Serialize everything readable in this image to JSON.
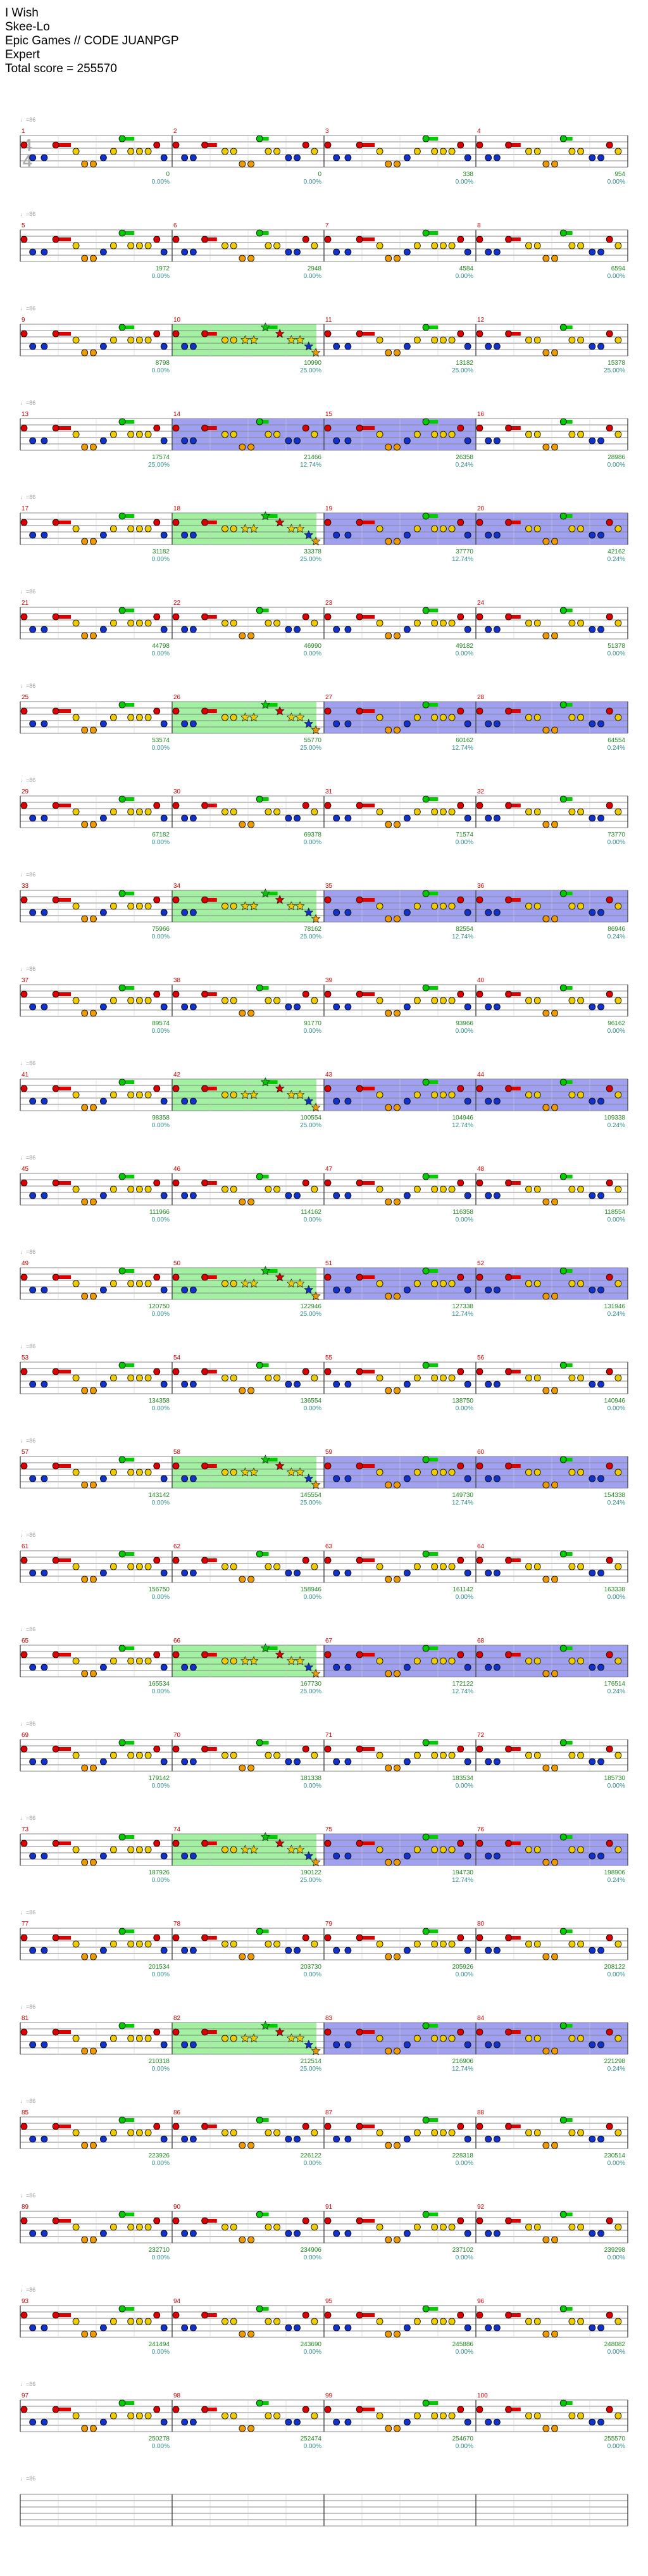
{
  "song": {
    "title": "I Wish",
    "artist": "Skee-Lo",
    "charter": "Epic Games // CODE JUANPGP",
    "difficulty": "Expert",
    "total_score_label": "Total score = 255570"
  },
  "time_signature": [
    "4",
    "4"
  ],
  "tempo_marker_glyph": "♩=86",
  "colors": {
    "staff_line": "#888888",
    "measure_line": "#555555",
    "measure_number": "#cc0000",
    "score_text": "#228b22",
    "multiplier_text": "#2e8b8b",
    "gray_text": "#999999",
    "star_power": "#90ee90",
    "overdrive": "#8080ee",
    "lanes": [
      "#00cc00",
      "#dd0000",
      "#eecc00",
      "#1133cc",
      "#ee9900"
    ]
  },
  "measures": [
    {
      "n": "1",
      "score": "0",
      "mult": "0.00%",
      "gray": "",
      "sp": false,
      "od": false
    },
    {
      "n": "2",
      "score": "0",
      "mult": "0.00%",
      "gray": "",
      "sp": false,
      "od": false
    },
    {
      "n": "3",
      "score": "0",
      "mult": "0.00%",
      "gray": "",
      "sp": false,
      "od": false
    },
    {
      "n": "4",
      "score": "338",
      "mult": "0.00%",
      "gray": "",
      "sp": false,
      "od": false
    },
    {
      "n": "5",
      "score": "954",
      "mult": "0.00%",
      "gray": "",
      "sp": false,
      "od": false
    },
    {
      "n": "6",
      "score": "1972",
      "mult": "0.00%",
      "gray": "",
      "sp": false,
      "od": false
    },
    {
      "n": "7",
      "score": "2948",
      "mult": "0.00%",
      "gray": "",
      "sp": false,
      "od": false
    },
    {
      "n": "8",
      "score": "4584",
      "mult": "0.00%",
      "gray": "",
      "sp": false,
      "od": false
    },
    {
      "n": "9",
      "score": "6594",
      "mult": "0.00%",
      "gray": "",
      "sp": false,
      "od": false
    },
    {
      "n": "10",
      "score": "8798",
      "mult": "0.00%",
      "gray": "",
      "sp": true,
      "od": false
    },
    {
      "n": "11",
      "score": "10990",
      "mult": "25.00%",
      "gray": "",
      "sp": false,
      "od": false
    },
    {
      "n": "12",
      "score": "13182",
      "mult": "25.00%",
      "gray": "",
      "sp": false,
      "od": false
    },
    {
      "n": "13",
      "score": "15378",
      "mult": "25.00%",
      "gray": "",
      "sp": false,
      "od": false
    },
    {
      "n": "14",
      "score": "17574",
      "mult": "25.00%",
      "gray": "",
      "sp": false,
      "od": true
    },
    {
      "n": "15",
      "score": "21466",
      "mult": "12.74%",
      "gray": "",
      "sp": false,
      "od": true
    },
    {
      "n": "16",
      "score": "26358",
      "mult": "0.24%",
      "gray": "",
      "sp": false,
      "od": false
    },
    {
      "n": "17",
      "score": "28986",
      "mult": "0.00%",
      "gray": "",
      "sp": false,
      "od": false
    },
    {
      "n": "18",
      "score": "31182",
      "mult": "0.00%",
      "gray": "",
      "sp": true,
      "od": false
    },
    {
      "n": "19",
      "score": "33378",
      "mult": "25.00%",
      "gray": "",
      "sp": false,
      "od": true
    },
    {
      "n": "20",
      "score": "37770",
      "mult": "12.74%",
      "gray": "",
      "sp": false,
      "od": true
    },
    {
      "n": "21",
      "score": "42162",
      "mult": "0.24%",
      "gray": "",
      "sp": false,
      "od": false
    },
    {
      "n": "22",
      "score": "44798",
      "mult": "0.00%",
      "gray": "",
      "sp": false,
      "od": false
    },
    {
      "n": "23",
      "score": "46990",
      "mult": "0.00%",
      "gray": "",
      "sp": false,
      "od": false
    },
    {
      "n": "24",
      "score": "49182",
      "mult": "0.00%",
      "gray": "",
      "sp": false,
      "od": false
    },
    {
      "n": "25",
      "score": "51378",
      "mult": "0.00%",
      "gray": "",
      "sp": false,
      "od": false
    },
    {
      "n": "26",
      "score": "53574",
      "mult": "0.00%",
      "gray": "",
      "sp": true,
      "od": false
    },
    {
      "n": "27",
      "score": "55770",
      "mult": "25.00%",
      "gray": "",
      "sp": false,
      "od": true
    },
    {
      "n": "28",
      "score": "60162",
      "mult": "12.74%",
      "gray": "",
      "sp": false,
      "od": true
    },
    {
      "n": "29",
      "score": "64554",
      "mult": "0.24%",
      "gray": "",
      "sp": false,
      "od": false
    },
    {
      "n": "30",
      "score": "67182",
      "mult": "0.00%",
      "gray": "",
      "sp": false,
      "od": false
    },
    {
      "n": "31",
      "score": "69378",
      "mult": "0.00%",
      "gray": "",
      "sp": false,
      "od": false
    },
    {
      "n": "32",
      "score": "71574",
      "mult": "0.00%",
      "gray": "",
      "sp": false,
      "od": false
    },
    {
      "n": "33",
      "score": "73770",
      "mult": "0.00%",
      "gray": "",
      "sp": false,
      "od": false
    },
    {
      "n": "34",
      "score": "75966",
      "mult": "0.00%",
      "gray": "",
      "sp": true,
      "od": false
    },
    {
      "n": "35",
      "score": "78162",
      "mult": "25.00%",
      "gray": "",
      "sp": false,
      "od": true
    },
    {
      "n": "36",
      "score": "82554",
      "mult": "12.74%",
      "gray": "",
      "sp": false,
      "od": true
    },
    {
      "n": "37",
      "score": "86946",
      "mult": "0.24%",
      "gray": "",
      "sp": false,
      "od": false
    },
    {
      "n": "38",
      "score": "89574",
      "mult": "0.00%",
      "gray": "",
      "sp": false,
      "od": false
    },
    {
      "n": "39",
      "score": "91770",
      "mult": "0.00%",
      "gray": "",
      "sp": false,
      "od": false
    },
    {
      "n": "40",
      "score": "93966",
      "mult": "0.00%",
      "gray": "",
      "sp": false,
      "od": false
    },
    {
      "n": "41",
      "score": "96162",
      "mult": "0.00%",
      "gray": "",
      "sp": false,
      "od": false
    },
    {
      "n": "42",
      "score": "98358",
      "mult": "0.00%",
      "gray": "",
      "sp": true,
      "od": false
    },
    {
      "n": "43",
      "score": "100554",
      "mult": "25.00%",
      "gray": "",
      "sp": false,
      "od": true
    },
    {
      "n": "44",
      "score": "104946",
      "mult": "12.74%",
      "gray": "",
      "sp": false,
      "od": true
    },
    {
      "n": "45",
      "score": "109338",
      "mult": "0.24%",
      "gray": "",
      "sp": false,
      "od": false
    },
    {
      "n": "46",
      "score": "111966",
      "mult": "0.00%",
      "gray": "",
      "sp": false,
      "od": false
    },
    {
      "n": "47",
      "score": "114162",
      "mult": "0.00%",
      "gray": "",
      "sp": false,
      "od": false
    },
    {
      "n": "48",
      "score": "116358",
      "mult": "0.00%",
      "gray": "",
      "sp": false,
      "od": false
    },
    {
      "n": "49",
      "score": "118554",
      "mult": "0.00%",
      "gray": "",
      "sp": false,
      "od": false
    },
    {
      "n": "50",
      "score": "120750",
      "mult": "0.00%",
      "gray": "",
      "sp": true,
      "od": false
    },
    {
      "n": "51",
      "score": "122946",
      "mult": "25.00%",
      "gray": "",
      "sp": false,
      "od": true
    },
    {
      "n": "52",
      "score": "127338",
      "mult": "12.74%",
      "gray": "",
      "sp": false,
      "od": true
    },
    {
      "n": "53",
      "score": "131946",
      "mult": "0.24%",
      "gray": "",
      "sp": false,
      "od": false
    },
    {
      "n": "54",
      "score": "134358",
      "mult": "0.00%",
      "gray": "",
      "sp": false,
      "od": false
    },
    {
      "n": "55",
      "score": "136554",
      "mult": "0.00%",
      "gray": "",
      "sp": false,
      "od": false
    },
    {
      "n": "56",
      "score": "138750",
      "mult": "0.00%",
      "gray": "",
      "sp": false,
      "od": false
    },
    {
      "n": "57",
      "score": "140946",
      "mult": "0.00%",
      "gray": "",
      "sp": false,
      "od": false
    },
    {
      "n": "58",
      "score": "143142",
      "mult": "0.00%",
      "gray": "",
      "sp": true,
      "od": false
    },
    {
      "n": "59",
      "score": "145554",
      "mult": "25.00%",
      "gray": "",
      "sp": false,
      "od": true
    },
    {
      "n": "60",
      "score": "149730",
      "mult": "12.74%",
      "gray": "",
      "sp": false,
      "od": true
    },
    {
      "n": "61",
      "score": "154338",
      "mult": "0.24%",
      "gray": "",
      "sp": false,
      "od": false
    },
    {
      "n": "62",
      "score": "156750",
      "mult": "0.00%",
      "gray": "",
      "sp": false,
      "od": false
    },
    {
      "n": "63",
      "score": "158946",
      "mult": "0.00%",
      "gray": "",
      "sp": false,
      "od": false
    },
    {
      "n": "64",
      "score": "161142",
      "mult": "0.00%",
      "gray": "",
      "sp": false,
      "od": false
    },
    {
      "n": "65",
      "score": "163338",
      "mult": "0.00%",
      "gray": "",
      "sp": false,
      "od": false
    },
    {
      "n": "66",
      "score": "165534",
      "mult": "0.00%",
      "gray": "",
      "sp": true,
      "od": false
    },
    {
      "n": "67",
      "score": "167730",
      "mult": "25.00%",
      "gray": "",
      "sp": false,
      "od": true
    },
    {
      "n": "68",
      "score": "172122",
      "mult": "12.74%",
      "gray": "",
      "sp": false,
      "od": true
    },
    {
      "n": "69",
      "score": "176514",
      "mult": "0.24%",
      "gray": "",
      "sp": false,
      "od": false
    },
    {
      "n": "70",
      "score": "179142",
      "mult": "0.00%",
      "gray": "",
      "sp": false,
      "od": false
    },
    {
      "n": "71",
      "score": "181338",
      "mult": "0.00%",
      "gray": "",
      "sp": false,
      "od": false
    },
    {
      "n": "72",
      "score": "183534",
      "mult": "0.00%",
      "gray": "",
      "sp": false,
      "od": false
    },
    {
      "n": "73",
      "score": "185730",
      "mult": "0.00%",
      "gray": "",
      "sp": false,
      "od": false
    },
    {
      "n": "74",
      "score": "187926",
      "mult": "0.00%",
      "gray": "",
      "sp": true,
      "od": false
    },
    {
      "n": "75",
      "score": "190122",
      "mult": "25.00%",
      "gray": "",
      "sp": false,
      "od": true
    },
    {
      "n": "76",
      "score": "194730",
      "mult": "12.74%",
      "gray": "",
      "sp": false,
      "od": true
    },
    {
      "n": "77",
      "score": "198906",
      "mult": "0.24%",
      "gray": "",
      "sp": false,
      "od": false
    },
    {
      "n": "78",
      "score": "201534",
      "mult": "0.00%",
      "gray": "",
      "sp": false,
      "od": false
    },
    {
      "n": "79",
      "score": "203730",
      "mult": "0.00%",
      "gray": "",
      "sp": false,
      "od": false
    },
    {
      "n": "80",
      "score": "205926",
      "mult": "0.00%",
      "gray": "",
      "sp": false,
      "od": false
    },
    {
      "n": "81",
      "score": "208122",
      "mult": "0.00%",
      "gray": "",
      "sp": false,
      "od": false
    },
    {
      "n": "82",
      "score": "210318",
      "mult": "0.00%",
      "gray": "",
      "sp": true,
      "od": false
    },
    {
      "n": "83",
      "score": "212514",
      "mult": "25.00%",
      "gray": "",
      "sp": false,
      "od": true
    },
    {
      "n": "84",
      "score": "216906",
      "mult": "12.74%",
      "gray": "",
      "sp": false,
      "od": true
    },
    {
      "n": "85",
      "score": "221298",
      "mult": "0.24%",
      "gray": "",
      "sp": false,
      "od": false
    },
    {
      "n": "86",
      "score": "223926",
      "mult": "0.00%",
      "gray": "",
      "sp": false,
      "od": false
    },
    {
      "n": "87",
      "score": "226122",
      "mult": "0.00%",
      "gray": "",
      "sp": false,
      "od": false
    },
    {
      "n": "88",
      "score": "228318",
      "mult": "0.00%",
      "gray": "",
      "sp": false,
      "od": false
    },
    {
      "n": "89",
      "score": "230514",
      "mult": "0.00%",
      "gray": "",
      "sp": false,
      "od": false
    },
    {
      "n": "90",
      "score": "232710",
      "mult": "0.00%",
      "gray": "",
      "sp": false,
      "od": false
    },
    {
      "n": "91",
      "score": "234906",
      "mult": "0.00%",
      "gray": "",
      "sp": false,
      "od": false
    },
    {
      "n": "92",
      "score": "237102",
      "mult": "0.00%",
      "gray": "",
      "sp": false,
      "od": false
    },
    {
      "n": "93",
      "score": "239298",
      "mult": "0.00%",
      "gray": "",
      "sp": false,
      "od": false
    },
    {
      "n": "94",
      "score": "241494",
      "mult": "0.00%",
      "gray": "",
      "sp": false,
      "od": false
    },
    {
      "n": "95",
      "score": "243690",
      "mult": "0.00%",
      "gray": "",
      "sp": false,
      "od": false
    },
    {
      "n": "96",
      "score": "245886",
      "mult": "0.00%",
      "gray": "",
      "sp": false,
      "od": false
    },
    {
      "n": "97",
      "score": "248082",
      "mult": "0.00%",
      "gray": "",
      "sp": false,
      "od": false
    },
    {
      "n": "98",
      "score": "250278",
      "mult": "0.00%",
      "gray": "",
      "sp": false,
      "od": false
    },
    {
      "n": "99",
      "score": "252474",
      "mult": "0.00%",
      "gray": "",
      "sp": false,
      "od": false
    },
    {
      "n": "100",
      "score": "254670",
      "mult": "0.00%",
      "gray": "",
      "sp": false,
      "od": false
    },
    {
      "n": "",
      "score": "255570",
      "mult": "0.00%",
      "gray": "",
      "sp": false,
      "od": false
    }
  ],
  "pattern_a": {
    "notes": [
      {
        "lane": 1,
        "t": 0.0
      },
      {
        "lane": 3,
        "t": 0.06
      },
      {
        "lane": 3,
        "t": 0.14
      },
      {
        "lane": 1,
        "t": 0.22,
        "sustain": 0.1
      },
      {
        "lane": 2,
        "t": 0.36
      },
      {
        "lane": 4,
        "t": 0.42
      },
      {
        "lane": 4,
        "t": 0.48
      },
      {
        "lane": 3,
        "t": 0.55
      },
      {
        "lane": 2,
        "t": 0.62
      },
      {
        "lane": 0,
        "t": 0.68,
        "sustain": 0.08
      },
      {
        "lane": 2,
        "t": 0.74
      },
      {
        "lane": 2,
        "t": 0.8
      },
      {
        "lane": 2,
        "t": 0.86
      },
      {
        "lane": 1,
        "t": 0.92
      },
      {
        "lane": 3,
        "t": 0.97
      }
    ]
  },
  "pattern_b": {
    "notes": [
      {
        "lane": 1,
        "t": 0.0
      },
      {
        "lane": 3,
        "t": 0.06
      },
      {
        "lane": 3,
        "t": 0.12
      },
      {
        "lane": 1,
        "t": 0.2,
        "sustain": 0.08
      },
      {
        "lane": 2,
        "t": 0.34
      },
      {
        "lane": 2,
        "t": 0.4
      },
      {
        "lane": 4,
        "t": 0.46
      },
      {
        "lane": 4,
        "t": 0.52
      },
      {
        "lane": 0,
        "t": 0.58,
        "sustain": 0.06
      },
      {
        "lane": 2,
        "t": 0.64
      },
      {
        "lane": 2,
        "t": 0.7
      },
      {
        "lane": 3,
        "t": 0.78
      },
      {
        "lane": 3,
        "t": 0.84
      },
      {
        "lane": 1,
        "t": 0.9
      },
      {
        "lane": 2,
        "t": 0.96
      }
    ]
  },
  "pattern_sp": {
    "notes": [
      {
        "lane": 1,
        "t": 0.0
      },
      {
        "lane": 3,
        "t": 0.06
      },
      {
        "lane": 3,
        "t": 0.12
      },
      {
        "lane": 1,
        "t": 0.2,
        "sustain": 0.08
      },
      {
        "lane": 2,
        "t": 0.34
      },
      {
        "lane": 2,
        "t": 0.4
      },
      {
        "lane": 2,
        "t": 0.48,
        "star": true
      },
      {
        "lane": 2,
        "t": 0.54,
        "star": true
      },
      {
        "lane": 0,
        "t": 0.62,
        "star": true,
        "sustain": 0.08
      },
      {
        "lane": 1,
        "t": 0.72,
        "star": true
      },
      {
        "lane": 2,
        "t": 0.8,
        "star": true
      },
      {
        "lane": 2,
        "t": 0.86,
        "star": true
      },
      {
        "lane": 3,
        "t": 0.92,
        "star": true
      },
      {
        "lane": 4,
        "t": 0.97,
        "star": true
      }
    ]
  }
}
